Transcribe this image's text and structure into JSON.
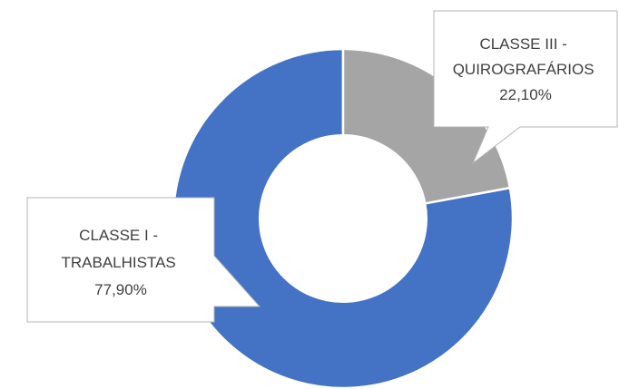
{
  "chart_data": {
    "type": "pie",
    "title": "",
    "hole": true,
    "categories": [
      "CLASSE I - TRABALHISTAS",
      "CLASSE III - QUIROGRAFÁRIOS"
    ],
    "values": [
      77.9,
      22.1
    ],
    "colors": [
      "#4472C4",
      "#A5A5A5"
    ],
    "data_labels": [
      {
        "lines": [
          "CLASSE I -",
          "TRABALHISTAS",
          "77,90%"
        ]
      },
      {
        "lines": [
          "CLASSE III -",
          "QUIROGRAFÁRIOS",
          "22,10%"
        ]
      }
    ]
  }
}
